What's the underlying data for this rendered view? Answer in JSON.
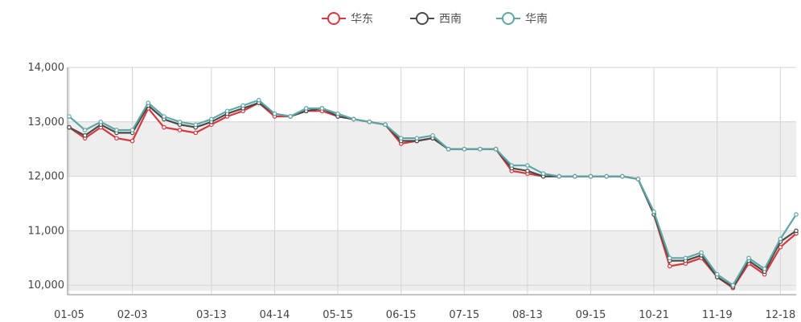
{
  "chart_data": {
    "type": "line",
    "title": "",
    "xlabel": "",
    "ylabel": "",
    "ylim": [
      9900,
      14000
    ],
    "yticks": [
      10000,
      11000,
      12000,
      13000,
      14000
    ],
    "ytick_labels": [
      "10,000",
      "11,000",
      "12,000",
      "13,000",
      "14,000"
    ],
    "grid": true,
    "banded_background": true,
    "legend_position": "top-center",
    "x_tick_labels": [
      "01-05",
      "02-03",
      "03-13",
      "04-14",
      "05-15",
      "06-15",
      "07-15",
      "08-13",
      "09-15",
      "10-21",
      "11-19",
      "12-18"
    ],
    "x": [
      "01-05",
      "01-12",
      "01-19",
      "01-26",
      "02-03",
      "02-10",
      "02-17",
      "02-24",
      "03-03",
      "03-13",
      "03-20",
      "03-27",
      "04-03",
      "04-14",
      "04-21",
      "04-28",
      "05-05",
      "05-15",
      "05-22",
      "05-29",
      "06-05",
      "06-15",
      "06-22",
      "06-29",
      "07-05",
      "07-15",
      "07-22",
      "07-29",
      "08-05",
      "08-13",
      "08-20",
      "08-27",
      "09-03",
      "09-15",
      "09-22",
      "09-29",
      "10-14",
      "10-21",
      "10-28",
      "11-04",
      "11-11",
      "11-19",
      "11-26",
      "12-03",
      "12-10",
      "12-18",
      "12-25"
    ],
    "series": [
      {
        "name": "华东",
        "color": "#d9363e",
        "values": [
          12900,
          12700,
          12900,
          12700,
          12650,
          13250,
          12900,
          12850,
          12800,
          12950,
          13100,
          13200,
          13350,
          13100,
          13100,
          13200,
          13200,
          13100,
          13050,
          13000,
          12950,
          12600,
          12650,
          12700,
          12500,
          12500,
          12500,
          12500,
          12100,
          12050,
          12000,
          12000,
          12000,
          12000,
          12000,
          12000,
          11950,
          11300,
          10350,
          10400,
          10500,
          10150,
          9950,
          10400,
          10200,
          10700,
          10950
        ]
      },
      {
        "name": "西南",
        "color": "#4a4a4a",
        "values": [
          12900,
          12750,
          12950,
          12800,
          12800,
          13300,
          13050,
          12950,
          12900,
          13000,
          13150,
          13250,
          13350,
          13150,
          13100,
          13200,
          13250,
          13100,
          13050,
          13000,
          12950,
          12650,
          12650,
          12700,
          12500,
          12500,
          12500,
          12500,
          12150,
          12100,
          12000,
          12000,
          12000,
          12000,
          12000,
          12000,
          11950,
          11300,
          10450,
          10450,
          10550,
          10150,
          9970,
          10450,
          10250,
          10800,
          11000
        ]
      },
      {
        "name": "华南",
        "color": "#5fa7a7",
        "values": [
          13100,
          12850,
          13000,
          12850,
          12850,
          13350,
          13100,
          13000,
          12950,
          13050,
          13200,
          13300,
          13400,
          13150,
          13100,
          13250,
          13250,
          13150,
          13050,
          13000,
          12950,
          12700,
          12700,
          12750,
          12500,
          12500,
          12500,
          12500,
          12200,
          12200,
          12050,
          12000,
          12000,
          12000,
          12000,
          12000,
          11950,
          11350,
          10500,
          10500,
          10600,
          10200,
          10000,
          10500,
          10300,
          10850,
          11300
        ]
      }
    ]
  }
}
